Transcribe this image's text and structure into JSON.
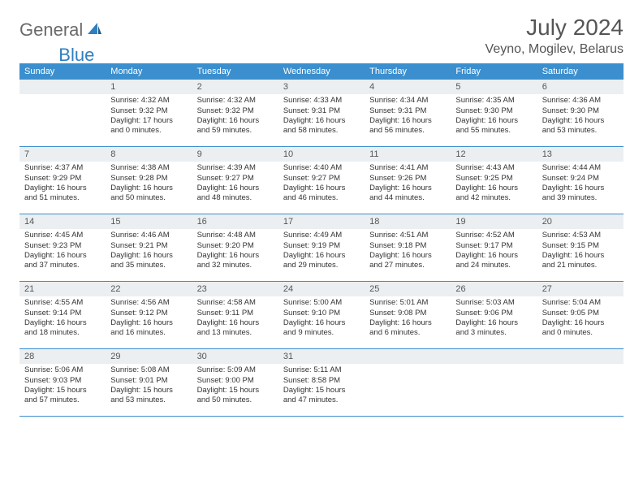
{
  "logo": {
    "text1": "General",
    "text2": "Blue"
  },
  "title": "July 2024",
  "location": "Veyno, Mogilev, Belarus",
  "colors": {
    "header_bg": "#3b8fce",
    "header_text": "#ffffff",
    "daynum_bg": "#eceff1",
    "text": "#333333",
    "rule": "#3b8fce"
  },
  "days_of_week": [
    "Sunday",
    "Monday",
    "Tuesday",
    "Wednesday",
    "Thursday",
    "Friday",
    "Saturday"
  ],
  "weeks": [
    [
      {
        "n": "",
        "sunrise": "",
        "sunset": "",
        "daylight": ""
      },
      {
        "n": "1",
        "sunrise": "Sunrise: 4:32 AM",
        "sunset": "Sunset: 9:32 PM",
        "daylight": "Daylight: 17 hours and 0 minutes."
      },
      {
        "n": "2",
        "sunrise": "Sunrise: 4:32 AM",
        "sunset": "Sunset: 9:32 PM",
        "daylight": "Daylight: 16 hours and 59 minutes."
      },
      {
        "n": "3",
        "sunrise": "Sunrise: 4:33 AM",
        "sunset": "Sunset: 9:31 PM",
        "daylight": "Daylight: 16 hours and 58 minutes."
      },
      {
        "n": "4",
        "sunrise": "Sunrise: 4:34 AM",
        "sunset": "Sunset: 9:31 PM",
        "daylight": "Daylight: 16 hours and 56 minutes."
      },
      {
        "n": "5",
        "sunrise": "Sunrise: 4:35 AM",
        "sunset": "Sunset: 9:30 PM",
        "daylight": "Daylight: 16 hours and 55 minutes."
      },
      {
        "n": "6",
        "sunrise": "Sunrise: 4:36 AM",
        "sunset": "Sunset: 9:30 PM",
        "daylight": "Daylight: 16 hours and 53 minutes."
      }
    ],
    [
      {
        "n": "7",
        "sunrise": "Sunrise: 4:37 AM",
        "sunset": "Sunset: 9:29 PM",
        "daylight": "Daylight: 16 hours and 51 minutes."
      },
      {
        "n": "8",
        "sunrise": "Sunrise: 4:38 AM",
        "sunset": "Sunset: 9:28 PM",
        "daylight": "Daylight: 16 hours and 50 minutes."
      },
      {
        "n": "9",
        "sunrise": "Sunrise: 4:39 AM",
        "sunset": "Sunset: 9:27 PM",
        "daylight": "Daylight: 16 hours and 48 minutes."
      },
      {
        "n": "10",
        "sunrise": "Sunrise: 4:40 AM",
        "sunset": "Sunset: 9:27 PM",
        "daylight": "Daylight: 16 hours and 46 minutes."
      },
      {
        "n": "11",
        "sunrise": "Sunrise: 4:41 AM",
        "sunset": "Sunset: 9:26 PM",
        "daylight": "Daylight: 16 hours and 44 minutes."
      },
      {
        "n": "12",
        "sunrise": "Sunrise: 4:43 AM",
        "sunset": "Sunset: 9:25 PM",
        "daylight": "Daylight: 16 hours and 42 minutes."
      },
      {
        "n": "13",
        "sunrise": "Sunrise: 4:44 AM",
        "sunset": "Sunset: 9:24 PM",
        "daylight": "Daylight: 16 hours and 39 minutes."
      }
    ],
    [
      {
        "n": "14",
        "sunrise": "Sunrise: 4:45 AM",
        "sunset": "Sunset: 9:23 PM",
        "daylight": "Daylight: 16 hours and 37 minutes."
      },
      {
        "n": "15",
        "sunrise": "Sunrise: 4:46 AM",
        "sunset": "Sunset: 9:21 PM",
        "daylight": "Daylight: 16 hours and 35 minutes."
      },
      {
        "n": "16",
        "sunrise": "Sunrise: 4:48 AM",
        "sunset": "Sunset: 9:20 PM",
        "daylight": "Daylight: 16 hours and 32 minutes."
      },
      {
        "n": "17",
        "sunrise": "Sunrise: 4:49 AM",
        "sunset": "Sunset: 9:19 PM",
        "daylight": "Daylight: 16 hours and 29 minutes."
      },
      {
        "n": "18",
        "sunrise": "Sunrise: 4:51 AM",
        "sunset": "Sunset: 9:18 PM",
        "daylight": "Daylight: 16 hours and 27 minutes."
      },
      {
        "n": "19",
        "sunrise": "Sunrise: 4:52 AM",
        "sunset": "Sunset: 9:17 PM",
        "daylight": "Daylight: 16 hours and 24 minutes."
      },
      {
        "n": "20",
        "sunrise": "Sunrise: 4:53 AM",
        "sunset": "Sunset: 9:15 PM",
        "daylight": "Daylight: 16 hours and 21 minutes."
      }
    ],
    [
      {
        "n": "21",
        "sunrise": "Sunrise: 4:55 AM",
        "sunset": "Sunset: 9:14 PM",
        "daylight": "Daylight: 16 hours and 18 minutes."
      },
      {
        "n": "22",
        "sunrise": "Sunrise: 4:56 AM",
        "sunset": "Sunset: 9:12 PM",
        "daylight": "Daylight: 16 hours and 16 minutes."
      },
      {
        "n": "23",
        "sunrise": "Sunrise: 4:58 AM",
        "sunset": "Sunset: 9:11 PM",
        "daylight": "Daylight: 16 hours and 13 minutes."
      },
      {
        "n": "24",
        "sunrise": "Sunrise: 5:00 AM",
        "sunset": "Sunset: 9:10 PM",
        "daylight": "Daylight: 16 hours and 9 minutes."
      },
      {
        "n": "25",
        "sunrise": "Sunrise: 5:01 AM",
        "sunset": "Sunset: 9:08 PM",
        "daylight": "Daylight: 16 hours and 6 minutes."
      },
      {
        "n": "26",
        "sunrise": "Sunrise: 5:03 AM",
        "sunset": "Sunset: 9:06 PM",
        "daylight": "Daylight: 16 hours and 3 minutes."
      },
      {
        "n": "27",
        "sunrise": "Sunrise: 5:04 AM",
        "sunset": "Sunset: 9:05 PM",
        "daylight": "Daylight: 16 hours and 0 minutes."
      }
    ],
    [
      {
        "n": "28",
        "sunrise": "Sunrise: 5:06 AM",
        "sunset": "Sunset: 9:03 PM",
        "daylight": "Daylight: 15 hours and 57 minutes."
      },
      {
        "n": "29",
        "sunrise": "Sunrise: 5:08 AM",
        "sunset": "Sunset: 9:01 PM",
        "daylight": "Daylight: 15 hours and 53 minutes."
      },
      {
        "n": "30",
        "sunrise": "Sunrise: 5:09 AM",
        "sunset": "Sunset: 9:00 PM",
        "daylight": "Daylight: 15 hours and 50 minutes."
      },
      {
        "n": "31",
        "sunrise": "Sunrise: 5:11 AM",
        "sunset": "Sunset: 8:58 PM",
        "daylight": "Daylight: 15 hours and 47 minutes."
      },
      {
        "n": "",
        "sunrise": "",
        "sunset": "",
        "daylight": ""
      },
      {
        "n": "",
        "sunrise": "",
        "sunset": "",
        "daylight": ""
      },
      {
        "n": "",
        "sunrise": "",
        "sunset": "",
        "daylight": ""
      }
    ]
  ]
}
